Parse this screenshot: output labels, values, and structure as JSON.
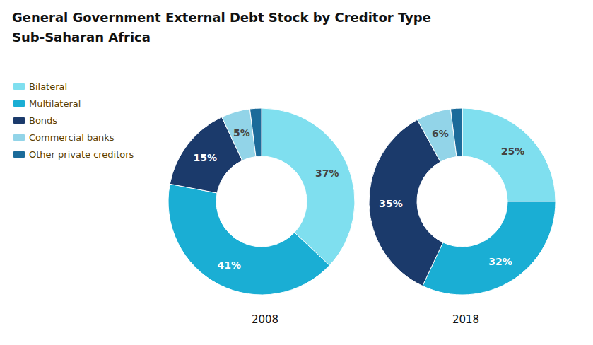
{
  "chart_data": {
    "type": "pie",
    "title": "General Government External Debt Stock by Creditor Type",
    "subtitle": "Sub-Saharan Africa",
    "categories": [
      "Bilateral",
      "Multilateral",
      "Bonds",
      "Commercial banks",
      "Other private creditors"
    ],
    "colors": [
      "#7FDFEF",
      "#1AAED4",
      "#1B3A6B",
      "#92D4E8",
      "#1B6B9A"
    ],
    "legend": "upper left",
    "data_labels": true,
    "series": [
      {
        "name": "2008",
        "values": [
          37,
          41,
          15,
          5,
          2
        ],
        "value_labels": [
          "37%",
          "41%",
          "15%",
          "5%",
          null
        ]
      },
      {
        "name": "2018",
        "values": [
          25,
          32,
          35,
          6,
          2
        ],
        "value_labels": [
          "25%",
          "32%",
          "35%",
          "6%",
          null
        ]
      }
    ]
  }
}
